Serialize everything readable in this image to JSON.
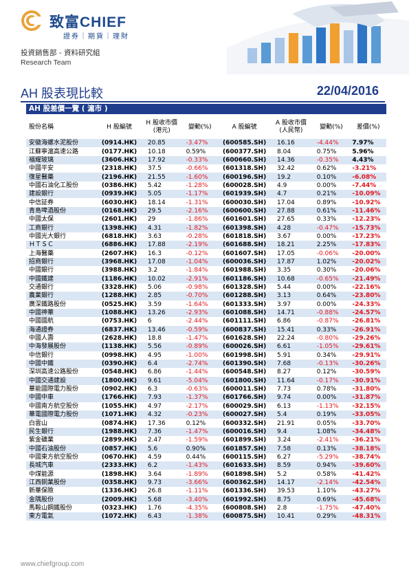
{
  "brand": {
    "cn_name": "致富",
    "en_name": "CHIEF",
    "sub": "證券｜期貨｜理財"
  },
  "dept": {
    "cn": "投資銷售部 - 資料研究組",
    "en": "Research Team"
  },
  "report": {
    "title": "AH 股表現比較",
    "date": "22/04/2016",
    "section": "AH 股差價一覽 ( 滬市 )"
  },
  "table": {
    "headers": [
      "股份名稱",
      "H 股編號",
      "H 股收市價\n(港元)",
      "變動(%)",
      "A 股編號",
      "A 股收市價\n(人民幣)",
      "變動(%)",
      "差價(%)"
    ],
    "rows": [
      [
        "安徽海螺水泥股份",
        "(0914.HK)",
        "20.85",
        "-3.47%",
        "(600585.SH)",
        "16.16",
        "-4.44%",
        "7.97%"
      ],
      [
        "江蘇寧滬高速公路",
        "(0177.HK)",
        "10.18",
        "0.59%",
        "(600377.SH)",
        "8.04",
        "0.75%",
        "5.96%"
      ],
      [
        "福耀玻璃",
        "(3606.HK)",
        "17.92",
        "-0.33%",
        "(600660.SH)",
        "14.36",
        "-0.35%",
        "4.43%"
      ],
      [
        "中國平安",
        "(2318.HK)",
        "37.5",
        "-0.66%",
        "(601318.SH)",
        "32.42",
        "0.62%",
        "-3.21%"
      ],
      [
        "復星醫藥",
        "(2196.HK)",
        "21.55",
        "-1.60%",
        "(600196.SH)",
        "19.2",
        "0.10%",
        "-6.08%"
      ],
      [
        "中國石油化工股份",
        "(0386.HK)",
        "5.42",
        "-1.28%",
        "(600028.SH)",
        "4.9",
        "0.00%",
        "-7.44%"
      ],
      [
        "建設銀行",
        "(0939.HK)",
        "5.05",
        "-1.17%",
        "(601939.SH)",
        "4.7",
        "0.21%",
        "-10.09%"
      ],
      [
        "中信証券",
        "(6030.HK)",
        "18.14",
        "-1.31%",
        "(600030.SH)",
        "17.04",
        "0.89%",
        "-10.92%"
      ],
      [
        "青島啤酒股份",
        "(0168.HK)",
        "29.5",
        "-2.16%",
        "(600600.SH)",
        "27.88",
        "0.61%",
        "-11.46%"
      ],
      [
        "中國太保",
        "(2601.HK)",
        "29",
        "-1.86%",
        "(601601.SH)",
        "27.65",
        "0.33%",
        "-12.23%"
      ],
      [
        "工商銀行",
        "(1398.HK)",
        "4.31",
        "-1.82%",
        "(601398.SH)",
        "4.28",
        "-0.47%",
        "-15.73%"
      ],
      [
        "中國光大銀行",
        "(6818.HK)",
        "3.63",
        "-0.28%",
        "(601818.SH)",
        "3.67",
        "0.00%",
        "-17.23%"
      ],
      [
        "ＨＴＳＣ",
        "(6886.HK)",
        "17.88",
        "-2.19%",
        "(601688.SH)",
        "18.21",
        "2.25%",
        "-17.83%"
      ],
      [
        "上海醫藥",
        "(2607.HK)",
        "16.3",
        "-0.12%",
        "(601607.SH)",
        "17.05",
        "-0.06%",
        "-20.00%"
      ],
      [
        "招商銀行",
        "(3968.HK)",
        "17.08",
        "-1.04%",
        "(600036.SH)",
        "17.87",
        "1.02%",
        "-20.02%"
      ],
      [
        "中國銀行",
        "(3988.HK)",
        "3.2",
        "-1.84%",
        "(601988.SH)",
        "3.35",
        "0.30%",
        "-20.06%"
      ],
      [
        "中國鐵建",
        "(1186.HK)",
        "10.02",
        "-2.91%",
        "(601186.SH)",
        "10.68",
        "-0.65%",
        "-21.49%"
      ],
      [
        "交通銀行",
        "(3328.HK)",
        "5.06",
        "-0.98%",
        "(601328.SH)",
        "5.44",
        "0.00%",
        "-22.16%"
      ],
      [
        "農業銀行",
        "(1288.HK)",
        "2.85",
        "-0.70%",
        "(601288.SH)",
        "3.13",
        "0.64%",
        "-23.80%"
      ],
      [
        "廣深鐵路股份",
        "(0525.HK)",
        "3.59",
        "-1.64%",
        "(601333.SH)",
        "3.97",
        "0.00%",
        "-24.33%"
      ],
      [
        "中國神華",
        "(1088.HK)",
        "13.26",
        "-2.93%",
        "(601088.SH)",
        "14.71",
        "-0.88%",
        "-24.57%"
      ],
      [
        "中國國航",
        "(0753.HK)",
        "6",
        "-2.44%",
        "(601111.SH)",
        "6.86",
        "-0.87%",
        "-26.81%"
      ],
      [
        "海通證券",
        "(6837.HK)",
        "13.46",
        "-0.59%",
        "(600837.SH)",
        "15.41",
        "0.33%",
        "-26.91%"
      ],
      [
        "中國人壽",
        "(2628.HK)",
        "18.8",
        "-1.47%",
        "(601628.SH)",
        "22.24",
        "-0.80%",
        "-29.26%"
      ],
      [
        "中海發展股份",
        "(1138.HK)",
        "5.56",
        "-0.89%",
        "(600026.SH)",
        "6.61",
        "-1.05%",
        "-29.61%"
      ],
      [
        "中信銀行",
        "(0998.HK)",
        "4.95",
        "-1.00%",
        "(601998.SH)",
        "5.91",
        "0.34%",
        "-29.91%"
      ],
      [
        "中國中鐵",
        "(0390.HK)",
        "6.4",
        "-2.74%",
        "(601390.SH)",
        "7.68",
        "-0.13%",
        "-30.26%"
      ],
      [
        "深圳高速公路股份",
        "(0548.HK)",
        "6.86",
        "-1.44%",
        "(600548.SH)",
        "8.27",
        "0.12%",
        "-30.59%"
      ],
      [
        "中國交通建設",
        "(1800.HK)",
        "9.61",
        "-5.04%",
        "(601800.SH)",
        "11.64",
        "-0.17%",
        "-30.91%"
      ],
      [
        "華能國際電力股份",
        "(0902.HK)",
        "6.3",
        "-0.63%",
        "(600011.SH)",
        "7.73",
        "0.78%",
        "-31.80%"
      ],
      [
        "中國中車",
        "(1766.HK)",
        "7.93",
        "-1.37%",
        "(601766.SH)",
        "9.74",
        "0.00%",
        "-31.87%"
      ],
      [
        "中國南方航空股份",
        "(1055.HK)",
        "4.97",
        "-2.17%",
        "(600029.SH)",
        "6.13",
        "-1.13%",
        "-32.15%"
      ],
      [
        "華電國際電力股份",
        "(1071.HK)",
        "4.32",
        "-0.23%",
        "(600027.SH)",
        "5.4",
        "0.19%",
        "-33.05%"
      ],
      [
        "白雲山",
        "(0874.HK)",
        "17.36",
        "0.12%",
        "(600332.SH)",
        "21.91",
        "0.05%",
        "-33.70%"
      ],
      [
        "民生銀行",
        "(1988.HK)",
        "7.36",
        "-1.47%",
        "(600016.SH)",
        "9.4",
        "1.08%",
        "-34.48%"
      ],
      [
        "紫金礦業",
        "(2899.HK)",
        "2.47",
        "-1.59%",
        "(601899.SH)",
        "3.24",
        "-2.41%",
        "-36.21%"
      ],
      [
        "中國石油股份",
        "(0857.HK)",
        "5.6",
        "0.90%",
        "(601857.SH)",
        "7.58",
        "0.13%",
        "-38.18%"
      ],
      [
        "中國東方航空股份",
        "(0670.HK)",
        "4.59",
        "0.44%",
        "(600115.SH)",
        "6.27",
        "-5.29%",
        "-38.74%"
      ],
      [
        "長城汽車",
        "(2333.HK)",
        "6.2",
        "-1.43%",
        "(601633.SH)",
        "8.59",
        "0.94%",
        "-39.60%"
      ],
      [
        "中煤能源",
        "(1898.HK)",
        "3.64",
        "-1.89%",
        "(601898.SH)",
        "5.2",
        "0.58%",
        "-41.42%"
      ],
      [
        "江西銅業股份",
        "(0358.HK)",
        "9.73",
        "-3.66%",
        "(600362.SH)",
        "14.17",
        "-2.14%",
        "-42.54%"
      ],
      [
        "新華保險",
        "(1336.HK)",
        "26.8",
        "-1.11%",
        "(601336.SH)",
        "39.53",
        "1.10%",
        "-43.27%"
      ],
      [
        "金隅股份",
        "(2009.HK)",
        "5.68",
        "-3.40%",
        "(601992.SH)",
        "8.75",
        "0.69%",
        "-45.68%"
      ],
      [
        "馬鞍山鋼鐵股份",
        "(0323.HK)",
        "1.76",
        "-4.35%",
        "(600808.SH)",
        "2.8",
        "-1.75%",
        "-47.40%"
      ],
      [
        "東方電氣",
        "(1072.HK)",
        "6.43",
        "-1.38%",
        "(600875.SH)",
        "10.41",
        "0.29%",
        "-48.31%"
      ]
    ]
  },
  "footer": {
    "url": "www.chiefgroup.com"
  },
  "colors": {
    "brand_blue": "#1e4a8c",
    "negative": "#e0161b",
    "stripe": "#dbe6f4"
  }
}
